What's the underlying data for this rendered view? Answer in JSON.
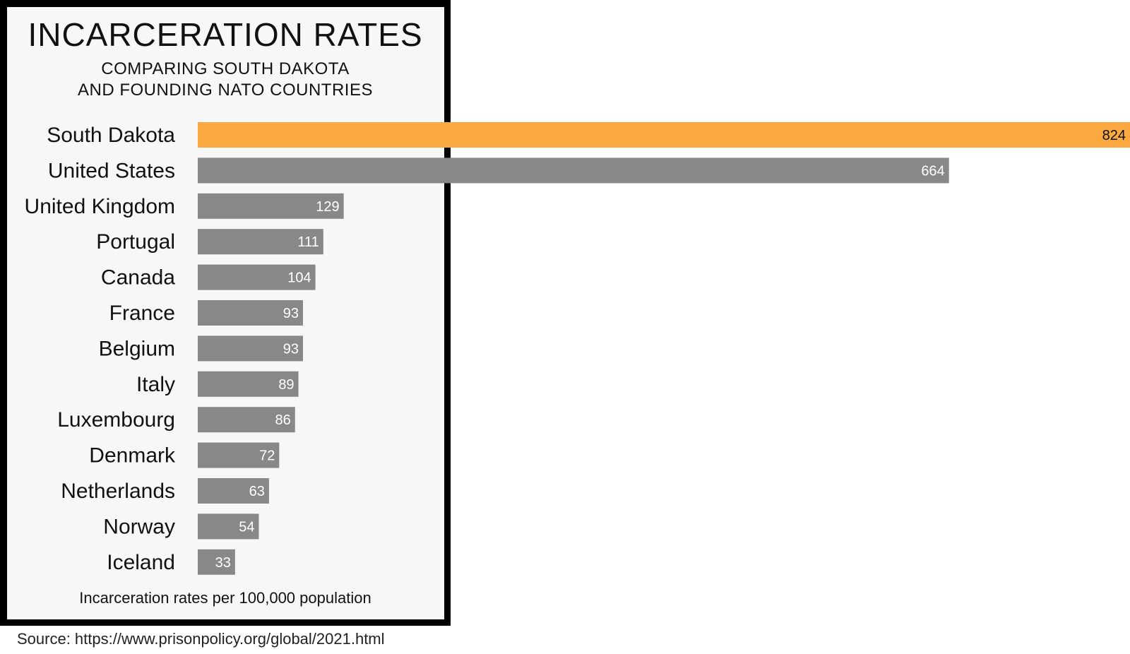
{
  "chart_data": {
    "type": "bar",
    "orientation": "horizontal",
    "title": "INCARCERATION RATES",
    "subtitle": [
      "COMPARING SOUTH DAKOTA",
      "AND FOUNDING NATO COUNTRIES"
    ],
    "xlabel": "Incarceration rates per 100,000 population",
    "categories": [
      "South Dakota",
      "United States",
      "United Kingdom",
      "Portugal",
      "Canada",
      "France",
      "Belgium",
      "Italy",
      "Luxembourg",
      "Denmark",
      "Netherlands",
      "Norway",
      "Iceland"
    ],
    "values": [
      824,
      664,
      129,
      111,
      104,
      93,
      93,
      89,
      86,
      72,
      63,
      54,
      33
    ],
    "xlim": [
      0,
      824
    ],
    "grid": false,
    "colors": {
      "highlight": "#f9a940",
      "default": "#888888",
      "highlight_label": "#111111",
      "default_label": "#ffffff"
    },
    "highlight_category": "South Dakota"
  },
  "source": "Source: https://www.prisonpolicy.org/global/2021.html"
}
